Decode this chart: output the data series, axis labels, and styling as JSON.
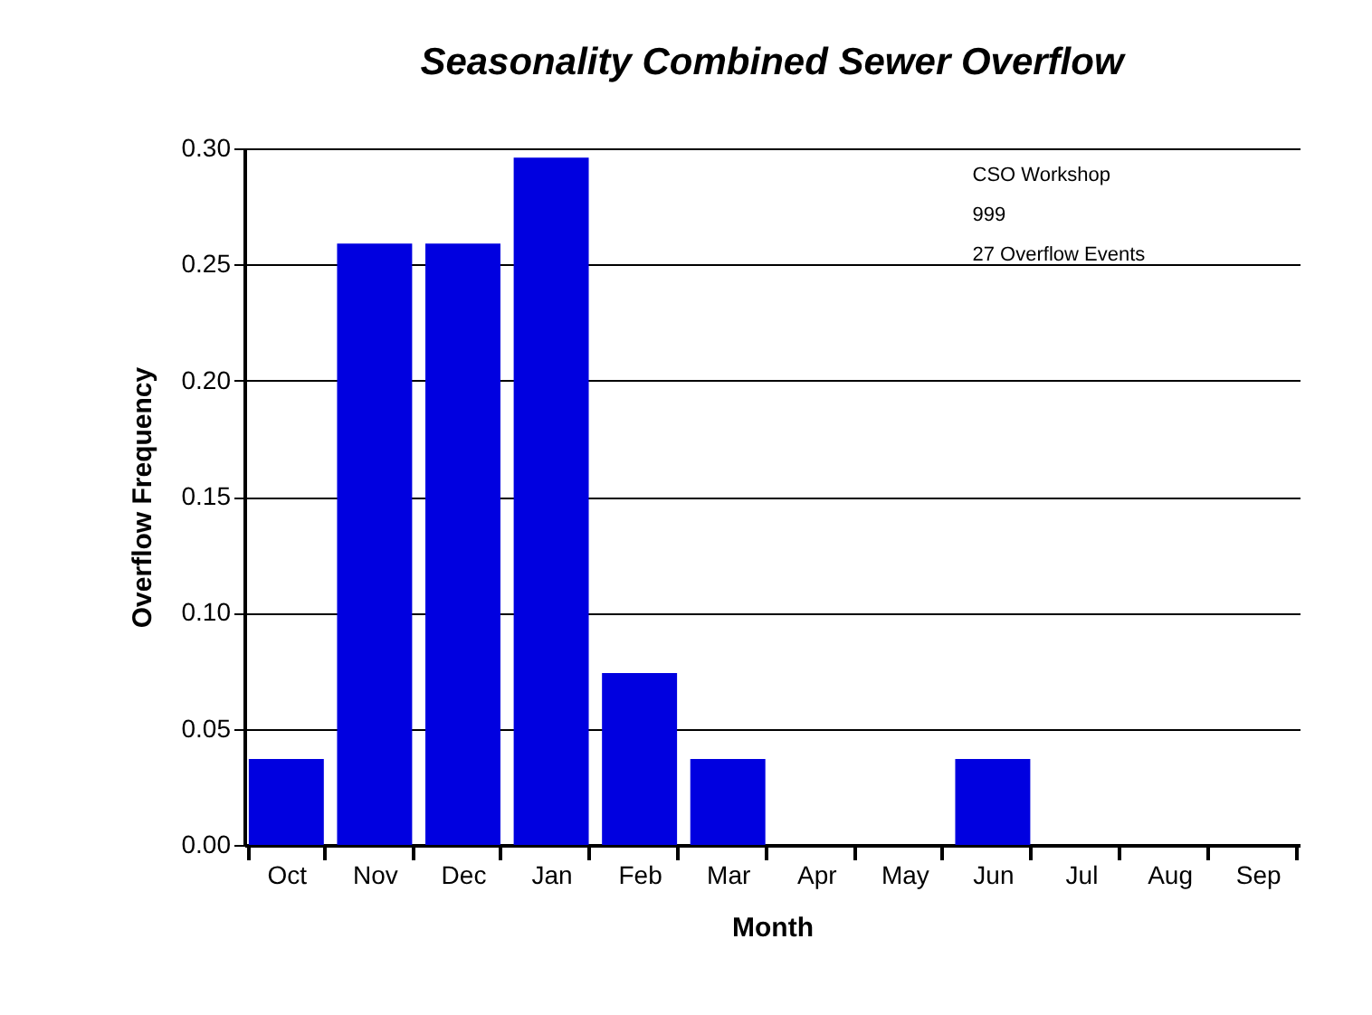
{
  "chart_data": {
    "type": "bar",
    "title": "Seasonality Combined Sewer Overflow",
    "xlabel": "Month",
    "ylabel": "Overflow Frequency",
    "categories": [
      "Oct",
      "Nov",
      "Dec",
      "Jan",
      "Feb",
      "Mar",
      "Apr",
      "May",
      "Jun",
      "Jul",
      "Aug",
      "Sep"
    ],
    "values": [
      0.037,
      0.259,
      0.259,
      0.296,
      0.074,
      0.037,
      0,
      0,
      0.037,
      0,
      0,
      0
    ],
    "color": "#0000e0",
    "ylim": [
      0,
      0.3
    ],
    "yticks": [
      {
        "value": 0,
        "label": "0.00"
      },
      {
        "value": 0.05,
        "label": "0.05"
      },
      {
        "value": 0.1,
        "label": "0.10"
      },
      {
        "value": 0.15,
        "label": "0.15"
      },
      {
        "value": 0.2,
        "label": "0.20"
      },
      {
        "value": 0.25,
        "label": "0.25"
      },
      {
        "value": 0.3,
        "label": "0.30"
      }
    ],
    "grid": "y",
    "annotations": [
      "CSO Workshop",
      "999",
      "27 Overflow Events"
    ]
  }
}
